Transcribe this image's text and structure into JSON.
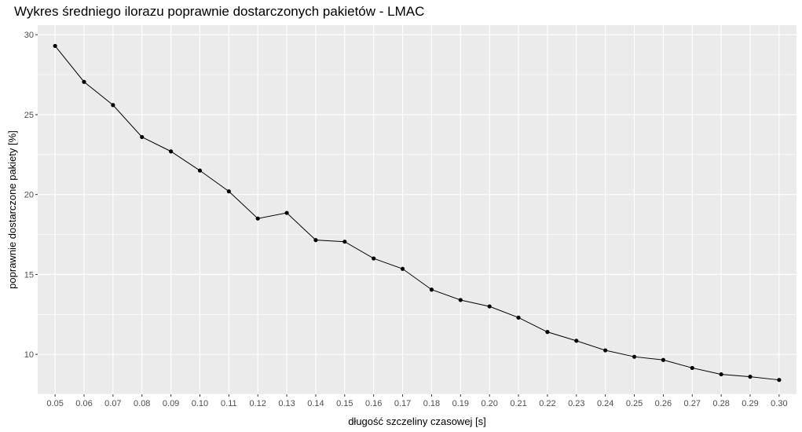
{
  "chart_data": {
    "type": "line",
    "title": "Wykres średniego ilorazu poprawnie dostarczonych pakietów - LMAC",
    "xlabel": "długość szczeliny czasowej [s]",
    "ylabel": "poprawnie dostarczone pakiety [%]",
    "categories": [
      "0.05",
      "0.06",
      "0.07",
      "0.08",
      "0.09",
      "0.10",
      "0.11",
      "0.12",
      "0.13",
      "0.14",
      "0.15",
      "0.16",
      "0.17",
      "0.18",
      "0.19",
      "0.20",
      "0.21",
      "0.22",
      "0.23",
      "0.24",
      "0.25",
      "0.26",
      "0.27",
      "0.28",
      "0.29",
      "0.30"
    ],
    "series": [
      {
        "values": [
          29.3,
          27.05,
          25.6,
          23.6,
          22.7,
          21.5,
          20.2,
          18.5,
          18.85,
          17.15,
          17.05,
          16.0,
          15.35,
          14.05,
          13.4,
          13.0,
          12.3,
          11.4,
          10.85,
          10.25,
          9.85,
          9.65,
          9.15,
          8.75,
          8.6,
          8.4
        ],
        "color": "#000000"
      }
    ],
    "ylim": [
      7.5,
      30.6
    ],
    "yticks": [
      10,
      15,
      20,
      25,
      30
    ],
    "grid": true,
    "legend": "none",
    "panel_background": "#ebebeb",
    "grid_color": "#ffffff"
  }
}
